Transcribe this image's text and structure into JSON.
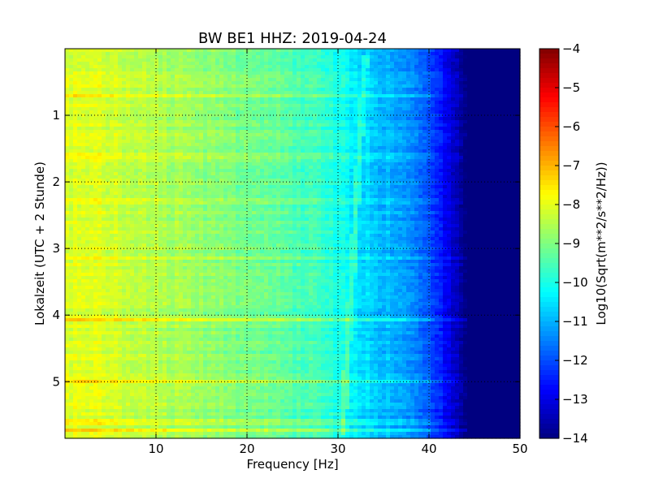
{
  "chart_data": {
    "type": "heatmap",
    "title": "BW BE1 HHZ: 2019-04-24",
    "xlabel": "Frequency [Hz]",
    "ylabel": "Lokalzeit (UTC + 2 Stunde)",
    "xlim": [
      0,
      50
    ],
    "ylim": [
      5.85,
      0
    ],
    "x_ticks": [
      10,
      20,
      30,
      40,
      50
    ],
    "y_ticks": [
      1,
      2,
      3,
      4,
      5
    ],
    "grid": true,
    "colormap": "jet",
    "colorbar": {
      "label": "Log10(Sqrt(m**2/s**2/Hz))",
      "range": [
        -14,
        -4
      ],
      "ticks": [
        -4,
        -5,
        -6,
        -7,
        -8,
        -9,
        -10,
        -11,
        -12,
        -13,
        -14
      ]
    },
    "frequency_profile": {
      "frequencies": [
        0,
        2,
        5,
        10,
        15,
        20,
        25,
        28,
        30,
        32,
        33,
        35,
        37,
        38,
        39,
        40,
        41,
        42,
        43,
        44,
        45,
        50
      ],
      "log10_amplitude": [
        -8.2,
        -8.0,
        -8.2,
        -8.5,
        -8.8,
        -9.1,
        -9.4,
        -9.7,
        -10.0,
        -10.4,
        -10.6,
        -10.9,
        -11.1,
        -11.3,
        -11.6,
        -12.0,
        -12.4,
        -12.8,
        -13.3,
        -14.0,
        -14.0,
        -14.0
      ]
    },
    "time_bands": [
      {
        "time": 0.7,
        "delta": 0.5
      },
      {
        "time": 1.6,
        "delta": 0.4
      },
      {
        "time": 2.3,
        "delta": 0.3
      },
      {
        "time": 3.15,
        "delta": 0.3
      },
      {
        "time": 4.07,
        "delta": 0.9
      },
      {
        "time": 5.0,
        "delta": 0.8
      },
      {
        "time": 5.6,
        "delta": 0.5
      },
      {
        "time": 5.72,
        "delta": 0.7
      }
    ],
    "line_feature": {
      "time_start": 0.1,
      "time_end": 5.8,
      "freq_start": 33.0,
      "freq_end": 30.5,
      "delta": 0.6
    }
  }
}
